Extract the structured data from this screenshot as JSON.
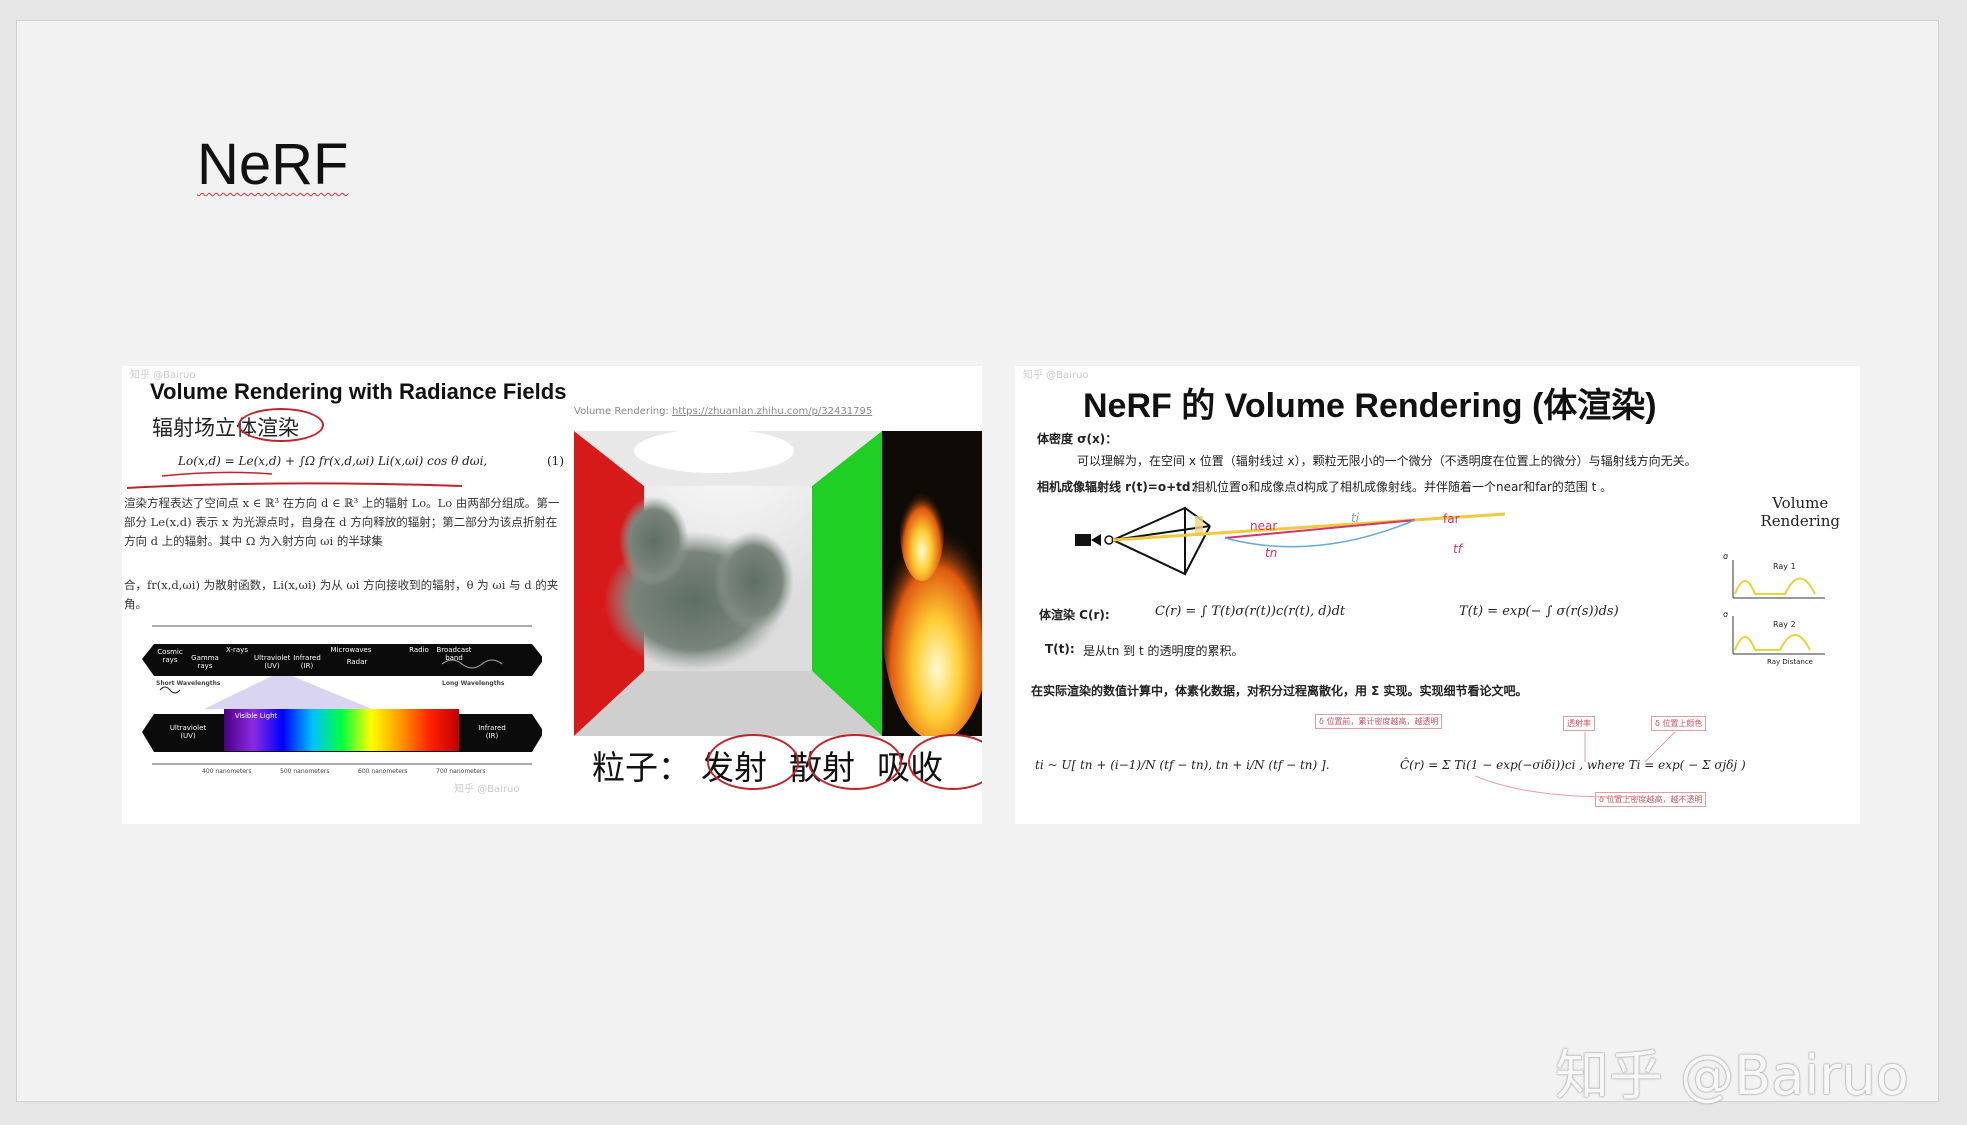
{
  "slide": {
    "title": "NeRF"
  },
  "left_panel": {
    "faint_header": "知乎 @Bairuo",
    "heading": "Volume Rendering with Radiance Fields",
    "subtitle": "辐射场立体渲染",
    "equation": "Lo(x,d) = Le(x,d) + ∫Ω fr(x,d,ωi) Li(x,ωi) cos θ dωi,",
    "equation_number": "(1)",
    "paragraph_1": "渲染方程表达了空间点 x ∈ ℝ³ 在方向 d ∈ ℝ³ 上的辐射 Lo。Lo 由两部分组成。第一部分 Le(x,d) 表示 x 为光源点时，自身在 d 方向释放的辐射；第二部分为该点折射在方向 d 上的辐射。其中 Ω 为入射方向 ωi 的半球集",
    "paragraph_2": "合，fr(x,d,ωi) 为散射函数，Li(x,ωi) 为从 ωi 方向接收到的辐射，θ 为 ωi 与 d 的夹角。",
    "source_label": "Volume Rendering: ",
    "source_link": "https://zhuanlan.zhihu.com/p/32431795",
    "spectrum": {
      "top_bands": [
        "Cosmic rays",
        "Gamma rays",
        "X-rays",
        "Ultraviolet (UV)",
        "Infrared (IR)",
        "Microwaves",
        "Radar",
        "Radio",
        "Broadcast band"
      ],
      "short_label": "Short Wavelengths",
      "long_label": "Long Wavelengths",
      "visible_label": "Visible Light",
      "uv_label": "Ultraviolet (UV)",
      "ir_label": "Infrared (IR)",
      "nm_ticks": [
        "400 nanometers",
        "500 nanometers",
        "600 nanometers",
        "700 nanometers"
      ],
      "footer_faint": "知乎 @Bairuo"
    },
    "particles": {
      "prefix": "粒子：",
      "emit": "发射",
      "scatter": "散射",
      "absorb": "吸收"
    }
  },
  "right_panel": {
    "faint_header": "知乎 @Bairuo",
    "heading": "NeRF 的 Volume Rendering (体渲染)",
    "density_label": "体密度 σ(x)：",
    "density_text": "可以理解为，在空间 x 位置（辐射线过 x），颗粒无限小的一个微分（不透明度在位置上的微分）与辐射线方向无关。",
    "ray_label": "相机成像辐射线 r(t)=o+td：",
    "ray_text": "相机位置o和成像点d构成了相机成像射线。并伴随着一个near和far的范围 t 。",
    "near": "near",
    "far": "far",
    "ti": "ti",
    "tn": "tn",
    "tf": "tf",
    "render_label": "体渲染 C(r):",
    "render_eq": "C(r) = ∫ T(t)σ(r(t))c(r(t), d)dt",
    "transmit_eq": "T(t) = exp(− ∫ σ(r(s))ds)",
    "t_label": "T(t):",
    "t_text": "是从tn 到 t 的透明度的累积。",
    "numeric_text": "在实际渲染的数值计算中，体素化数据，对积分过程离散化，用 Σ 实现。实现细节看论文吧。",
    "sample_eq": "ti ~ U[ tn + (i−1)/N (tf − tn), tn + i/N (tf − tn) ].",
    "chat_eq": "Ĉ(r) = Σ Ti(1 − exp(−σiδi))ci ,  where Ti = exp( − Σ σjδj )",
    "volume_rendering": [
      "Volume",
      "Rendering"
    ],
    "ray1": "Ray 1",
    "ray2": "Ray 2",
    "ray_distance": "Ray Distance",
    "sigma": "σ",
    "annotations": {
      "a1": "δ 位置前，累计密度越高，越透明",
      "a2": "透射率",
      "a3": "δ 位置上颜色",
      "a4": "δ 位置上密度越高，越不透明"
    }
  },
  "watermark": "知乎 @Bairuo"
}
